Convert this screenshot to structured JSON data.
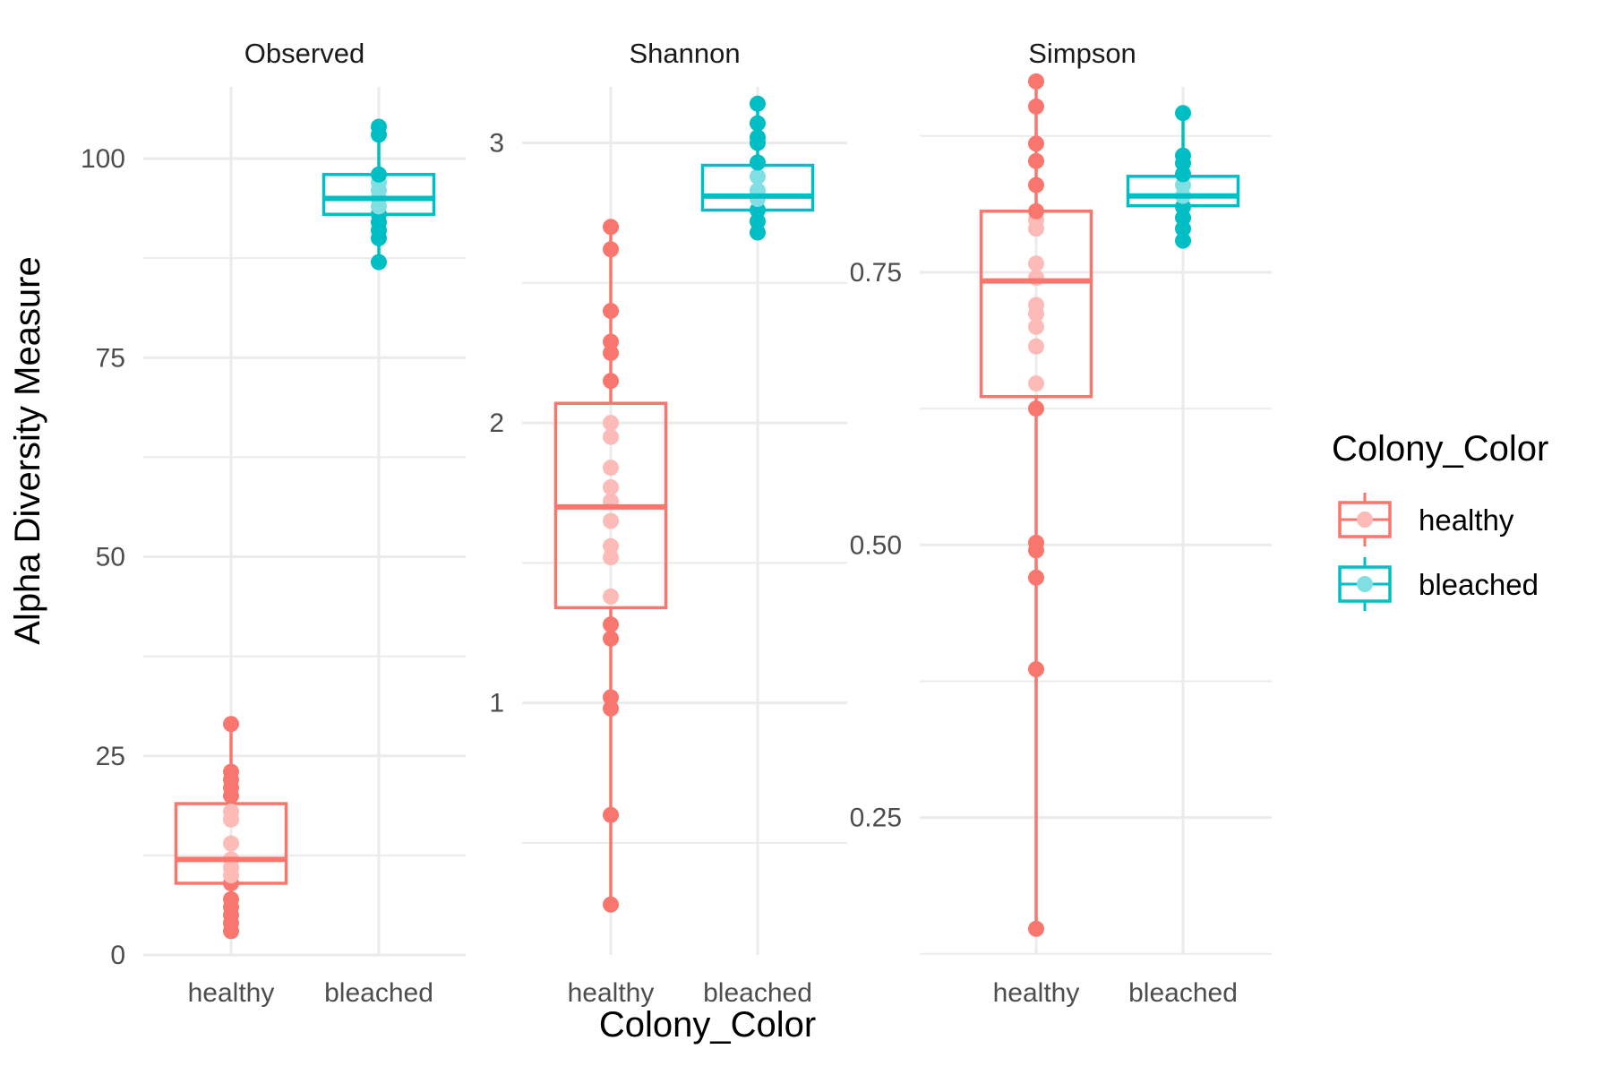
{
  "chart_data": {
    "type": "box",
    "x_label": "Colony_Color",
    "y_label": "Alpha Diversity Measure",
    "categories": [
      "healthy",
      "bleached"
    ],
    "legend": {
      "title": "Colony_Color",
      "placement": "right",
      "entries": [
        {
          "label": "healthy",
          "color": "#F8766D"
        },
        {
          "label": "bleached",
          "color": "#00BFC4"
        }
      ]
    },
    "grid": true,
    "facets": [
      {
        "title": "Observed",
        "ylim": [
          0,
          109
        ],
        "y_ticks": [
          {
            "value": 0,
            "label": "0"
          },
          {
            "value": 25,
            "label": "25"
          },
          {
            "value": 50,
            "label": "50"
          },
          {
            "value": 75,
            "label": "75"
          },
          {
            "value": 100,
            "label": "100"
          }
        ],
        "y_minor": [
          12.5,
          37.5,
          62.5,
          87.5
        ],
        "series": [
          {
            "name": "healthy",
            "color": "#F8766D",
            "box": {
              "q1": 9,
              "median": 12,
              "q3": 19,
              "whisker_low": 3,
              "whisker_high": 29
            },
            "points": [
              3,
              4,
              5,
              6,
              7,
              9,
              10,
              11,
              12,
              12,
              14,
              17,
              18,
              20,
              21,
              22,
              23,
              29
            ]
          },
          {
            "name": "bleached",
            "color": "#00BFC4",
            "box": {
              "q1": 93,
              "median": 95,
              "q3": 98,
              "whisker_low": 87,
              "whisker_high": 104
            },
            "points": [
              87,
              90,
              91,
              92,
              93,
              94,
              95,
              95,
              96,
              97,
              98,
              103,
              104
            ]
          }
        ]
      },
      {
        "title": "Shannon",
        "ylim": [
          0.1,
          3.2
        ],
        "y_ticks": [
          {
            "value": 1,
            "label": "1"
          },
          {
            "value": 2,
            "label": "2"
          },
          {
            "value": 3,
            "label": "3"
          }
        ],
        "y_minor": [
          0.5,
          1.5,
          2.5
        ],
        "series": [
          {
            "name": "healthy",
            "color": "#F8766D",
            "box": {
              "q1": 1.34,
              "median": 1.7,
              "q3": 2.07,
              "whisker_low": 0.28,
              "whisker_high": 2.7
            },
            "points": [
              0.28,
              0.6,
              0.98,
              1.02,
              1.23,
              1.28,
              1.38,
              1.52,
              1.56,
              1.65,
              1.72,
              1.77,
              1.84,
              1.95,
              2.0,
              2.15,
              2.25,
              2.29,
              2.4,
              2.62,
              2.7
            ]
          },
          {
            "name": "bleached",
            "color": "#00BFC4",
            "box": {
              "q1": 2.76,
              "median": 2.81,
              "q3": 2.92,
              "whisker_low": 2.68,
              "whisker_high": 3.14
            },
            "points": [
              2.68,
              2.72,
              2.76,
              2.8,
              2.83,
              2.88,
              2.93,
              3.0,
              3.02,
              3.07,
              3.14
            ]
          }
        ]
      },
      {
        "title": "Simpson",
        "ylim": [
          0.124,
          0.92
        ],
        "y_ticks": [
          {
            "value": 0.25,
            "label": "0.25"
          },
          {
            "value": 0.5,
            "label": "0.50"
          },
          {
            "value": 0.75,
            "label": "0.75"
          }
        ],
        "y_minor": [
          0.125,
          0.375,
          0.625,
          0.875
        ],
        "series": [
          {
            "name": "healthy",
            "color": "#F8766D",
            "box": {
              "q1": 0.636,
              "median": 0.742,
              "q3": 0.806,
              "whisker_low": 0.148,
              "whisker_high": 0.925
            },
            "points": [
              0.148,
              0.386,
              0.47,
              0.495,
              0.502,
              0.625,
              0.648,
              0.682,
              0.7,
              0.712,
              0.72,
              0.745,
              0.758,
              0.79,
              0.798,
              0.806,
              0.83,
              0.852,
              0.868,
              0.902,
              0.925
            ]
          },
          {
            "name": "bleached",
            "color": "#00BFC4",
            "box": {
              "q1": 0.811,
              "median": 0.82,
              "q3": 0.838,
              "whisker_low": 0.779,
              "whisker_high": 0.896
            },
            "points": [
              0.779,
              0.79,
              0.8,
              0.81,
              0.82,
              0.83,
              0.84,
              0.85,
              0.857,
              0.896
            ]
          }
        ]
      }
    ]
  }
}
